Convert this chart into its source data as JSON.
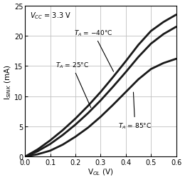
{
  "title": "",
  "xlabel": "V$_{OL}$ (V)",
  "ylabel": "I$_{SINK}$ (mA)",
  "xlim": [
    0.0,
    0.6
  ],
  "ylim": [
    0,
    25
  ],
  "xticks": [
    0.0,
    0.1,
    0.2,
    0.3,
    0.4,
    0.5,
    0.6
  ],
  "yticks": [
    0,
    5,
    10,
    15,
    20,
    25
  ],
  "annotation": "V$_{CC}$ = 3.3 V",
  "curves": [
    {
      "label": "T_A = -40C",
      "x": [
        0.0,
        0.05,
        0.1,
        0.15,
        0.2,
        0.25,
        0.3,
        0.35,
        0.4,
        0.45,
        0.5,
        0.55,
        0.6
      ],
      "y": [
        0.0,
        1.2,
        2.7,
        4.4,
        6.3,
        8.4,
        10.7,
        13.2,
        15.8,
        18.5,
        20.8,
        22.3,
        23.5
      ],
      "color": "#1a1a1a",
      "lw": 2.0
    },
    {
      "label": "T_A = 25C",
      "x": [
        0.0,
        0.05,
        0.1,
        0.15,
        0.2,
        0.25,
        0.3,
        0.35,
        0.4,
        0.45,
        0.5,
        0.55,
        0.6
      ],
      "y": [
        0.0,
        0.9,
        2.1,
        3.6,
        5.3,
        7.2,
        9.3,
        11.6,
        14.0,
        16.5,
        18.7,
        20.3,
        21.5
      ],
      "color": "#1a1a1a",
      "lw": 2.0
    },
    {
      "label": "T_A = 85C",
      "x": [
        0.0,
        0.05,
        0.1,
        0.15,
        0.2,
        0.25,
        0.3,
        0.35,
        0.4,
        0.45,
        0.5,
        0.55,
        0.6
      ],
      "y": [
        0.0,
        0.4,
        1.0,
        2.0,
        3.3,
        4.8,
        6.6,
        8.6,
        10.7,
        12.8,
        14.5,
        15.5,
        16.2
      ],
      "color": "#1a1a1a",
      "lw": 2.0
    }
  ],
  "background_color": "#ffffff",
  "grid_color": "#c0c0c0",
  "figsize": [
    2.6,
    2.53
  ],
  "dpi": 100
}
